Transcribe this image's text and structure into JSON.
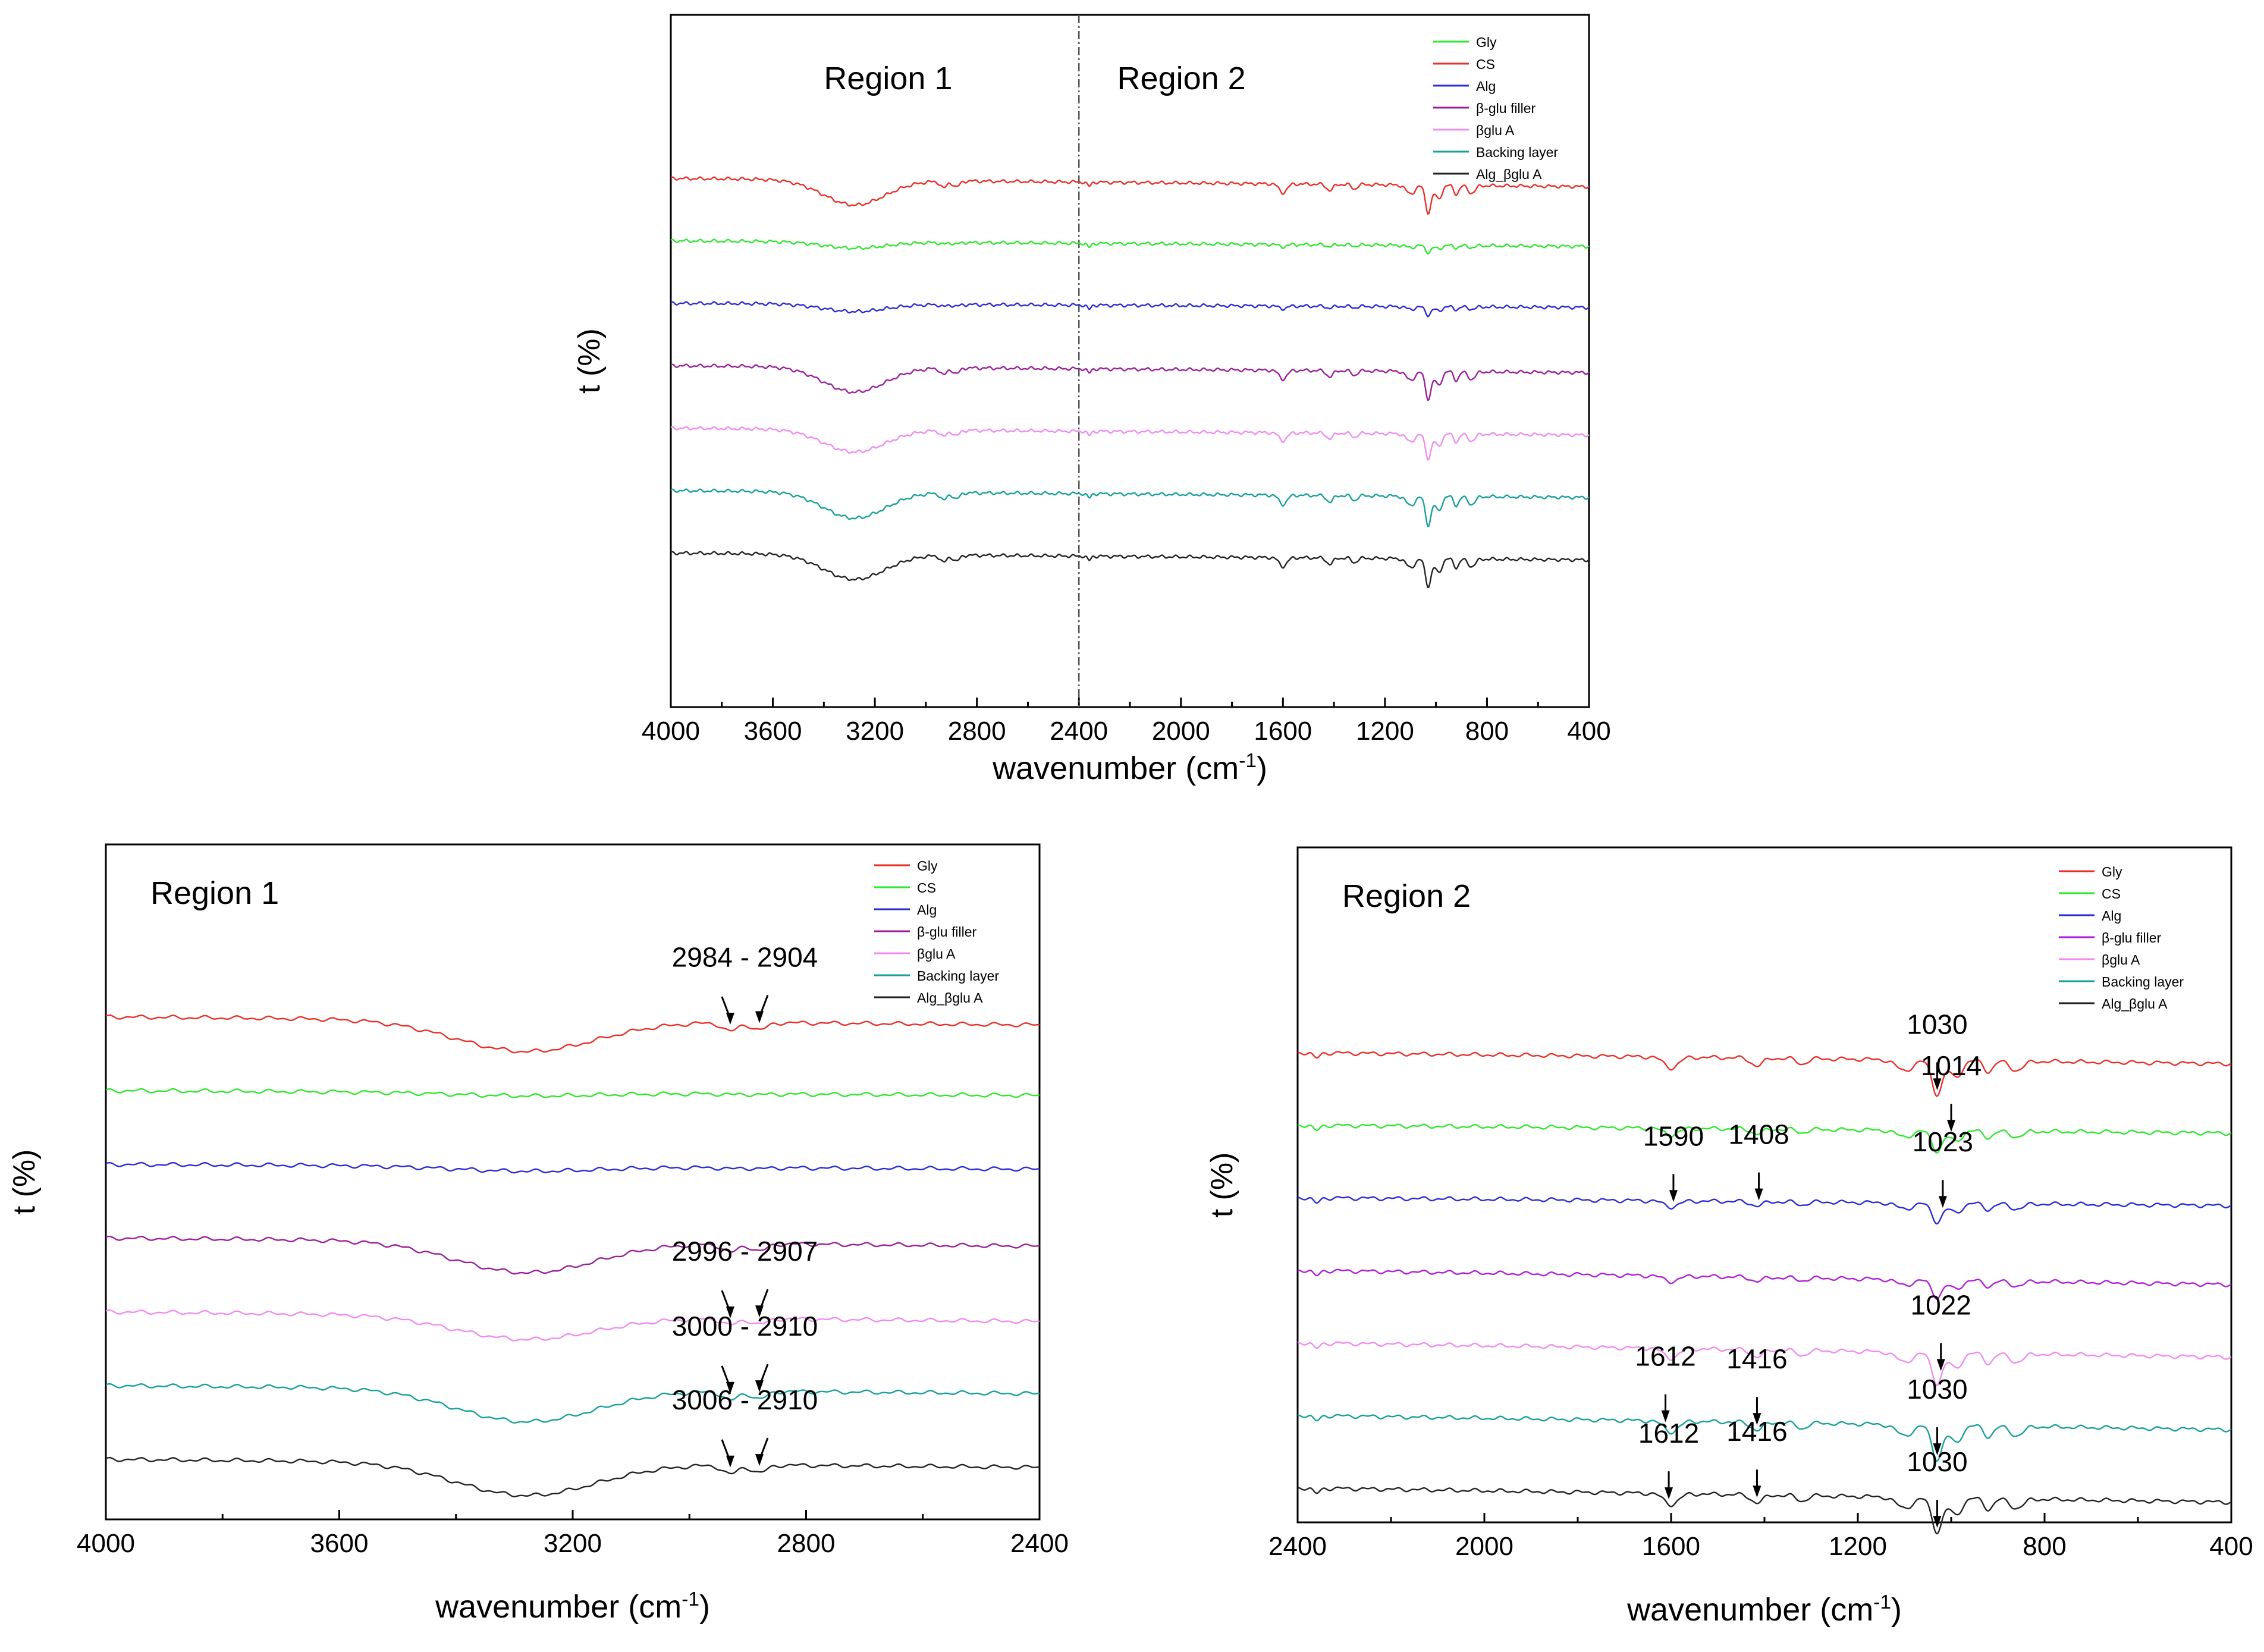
{
  "chart_data": [
    {
      "id": "full",
      "type": "line",
      "title": "",
      "xlabel": "wavenumber (cm-1)",
      "xlabel_main": "wavenumber (cm",
      "xlabel_sup": "-1",
      "xlabel_tail": ")",
      "ylabel": "t (%)",
      "xlim": [
        4000,
        400
      ],
      "xticks": [
        4000,
        3600,
        3200,
        2800,
        2400,
        2000,
        1600,
        1200,
        800,
        400
      ],
      "divider_x": 2400,
      "regions": [
        {
          "text": "Region 1",
          "x": 3400
        },
        {
          "text": "Region 2",
          "x": 2250
        }
      ],
      "legend": [
        "Gly",
        "CS",
        "Alg",
        "β-glu filler",
        "βglu A",
        "Backing layer",
        "Alg_βglu A"
      ],
      "legend_colors": [
        "#2fe82f",
        "#e8302a",
        "#2b2bd8",
        "#9b1f9b",
        "#f08cf0",
        "#17a09a",
        "#222222"
      ],
      "series": [
        {
          "color": "#e8302a",
          "offset": 1.0,
          "amp": 1.0,
          "tilt": 0.06
        },
        {
          "color": "#2fe82f",
          "offset": 2.05,
          "amp": 0.25,
          "tilt": 0.04
        },
        {
          "color": "#2b2bd8",
          "offset": 2.75,
          "amp": 0.3,
          "tilt": 0.03
        },
        {
          "color": "#9b1f9b",
          "offset": 3.4,
          "amp": 1.0,
          "tilt": 0.05
        },
        {
          "color": "#f08cf0",
          "offset": 4.2,
          "amp": 0.9,
          "tilt": 0.05
        },
        {
          "color": "#17a09a",
          "offset": 5.0,
          "amp": 1.05,
          "tilt": 0.05
        },
        {
          "color": "#222222",
          "offset": 6.05,
          "amp": 1.0,
          "tilt": 0.05
        }
      ]
    },
    {
      "id": "region1",
      "type": "line",
      "title": "Region 1",
      "xlabel": "wavenumber (cm-1)",
      "xlabel_main": "wavenumber (cm",
      "xlabel_sup": "-1",
      "xlabel_tail": ")",
      "ylabel": "t (%)",
      "xlim": [
        4000,
        2400
      ],
      "xticks": [
        4000,
        3600,
        3200,
        2800,
        2400
      ],
      "legend": [
        "Gly",
        "CS",
        "Alg",
        "β-glu filler",
        "βglu A",
        "Backing layer",
        "Alg_βglu A"
      ],
      "legend_colors": [
        "#e8302a",
        "#2fe82f",
        "#2b2bd8",
        "#9b1f9b",
        "#f08cf0",
        "#17a09a",
        "#222222"
      ],
      "series": [
        {
          "color": "#e8302a",
          "offset": 1.0,
          "amp": 1.0,
          "tilt": 0.05
        },
        {
          "color": "#2fe82f",
          "offset": 2.1,
          "amp": 0.1,
          "tilt": 0.03
        },
        {
          "color": "#2b2bd8",
          "offset": 2.85,
          "amp": 0.15,
          "tilt": 0.03
        },
        {
          "color": "#9b1f9b",
          "offset": 3.55,
          "amp": 1.0,
          "tilt": 0.05
        },
        {
          "color": "#f08cf0",
          "offset": 4.25,
          "amp": 0.75,
          "tilt": 0.06
        },
        {
          "color": "#17a09a",
          "offset": 5.0,
          "amp": 1.05,
          "tilt": 0.05
        },
        {
          "color": "#222222",
          "offset": 6.05,
          "amp": 1.05,
          "tilt": 0.05
        }
      ],
      "annotations": [
        {
          "text": "2984 - 2904",
          "series": 0,
          "peaks": [
            2930,
            2880
          ]
        },
        {
          "text": "2996 - 2907",
          "series": 4,
          "peaks": [
            2930,
            2880
          ]
        },
        {
          "text": "3000 - 2910",
          "series": 5,
          "peaks": [
            2930,
            2880
          ]
        },
        {
          "text": "3006 - 2910",
          "series": 6,
          "peaks": [
            2930,
            2880
          ]
        }
      ]
    },
    {
      "id": "region2",
      "type": "line",
      "title": "Region 2",
      "xlabel": "wavenumber (cm-1)",
      "xlabel_main": "wavenumber (cm",
      "xlabel_sup": "-1",
      "xlabel_tail": ")",
      "ylabel": "t (%)",
      "xlim": [
        2400,
        400
      ],
      "xticks": [
        2400,
        2000,
        1600,
        1200,
        800,
        400
      ],
      "legend": [
        "Gly",
        "CS",
        "Alg",
        "β-glu filler",
        "βglu A",
        "Backing layer",
        "Alg_βglu A"
      ],
      "legend_colors": [
        "#e8302a",
        "#2fe82f",
        "#2b2bd8",
        "#b01fd8",
        "#f08cf0",
        "#17a09a",
        "#222222"
      ],
      "series": [
        {
          "color": "#e8302a",
          "offset": 1.0,
          "amp": 1.0,
          "tilt": 0.07
        },
        {
          "color": "#2fe82f",
          "offset": 2.1,
          "amp": 0.6,
          "tilt": 0.05
        },
        {
          "color": "#2b2bd8",
          "offset": 2.75,
          "amp": 0.55,
          "tilt": 0.05
        },
        {
          "color": "#b01fd8",
          "offset": 3.5,
          "amp": 0.5,
          "tilt": 0.09
        },
        {
          "color": "#f08cf0",
          "offset": 4.25,
          "amp": 0.9,
          "tilt": 0.09
        },
        {
          "color": "#17a09a",
          "offset": 5.0,
          "amp": 1.0,
          "tilt": 0.09
        },
        {
          "color": "#222222",
          "offset": 6.0,
          "amp": 1.0,
          "tilt": 0.09
        }
      ],
      "annotations": [
        {
          "text": "1030",
          "series": 0,
          "peaks": [
            1030
          ]
        },
        {
          "text": "1014",
          "series": 1,
          "peaks": [
            1000
          ]
        },
        {
          "text": "1590",
          "series": 2,
          "peaks": [
            1595
          ]
        },
        {
          "text": "1408",
          "series": 2,
          "peaks": [
            1412
          ]
        },
        {
          "text": "1023",
          "series": 2,
          "peaks": [
            1018
          ]
        },
        {
          "text": "1022",
          "series": 4,
          "peaks": [
            1022
          ]
        },
        {
          "text": "1612",
          "series": 5,
          "peaks": [
            1612
          ]
        },
        {
          "text": "1416",
          "series": 5,
          "peaks": [
            1416
          ]
        },
        {
          "text": "1030",
          "series": 5,
          "peaks": [
            1030
          ]
        },
        {
          "text": "1612",
          "series": 6,
          "peaks": [
            1605
          ]
        },
        {
          "text": "1416",
          "series": 6,
          "peaks": [
            1416
          ]
        },
        {
          "text": "1030",
          "series": 6,
          "peaks": [
            1030
          ]
        }
      ]
    }
  ]
}
